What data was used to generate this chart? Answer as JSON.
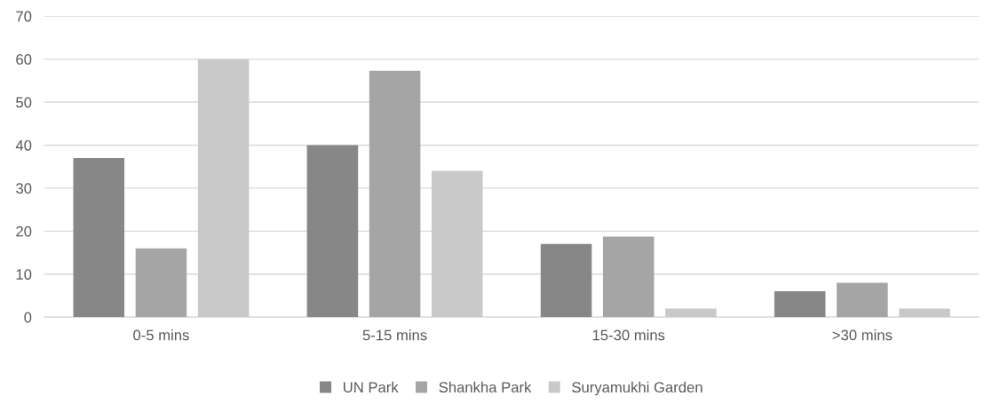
{
  "chart_data": {
    "type": "bar",
    "categories": [
      "0-5 mins",
      "5-15 mins",
      "15-30 mins",
      ">30 mins"
    ],
    "series": [
      {
        "name": "UN Park",
        "color": "#878787",
        "values": [
          37,
          40,
          17,
          6
        ]
      },
      {
        "name": "Shankha Park",
        "color": "#a5a5a5",
        "values": [
          16,
          57.3,
          18.7,
          8
        ]
      },
      {
        "name": "Suryamukhi Garden",
        "color": "#c9c9c9",
        "values": [
          60,
          34,
          2,
          2
        ]
      }
    ],
    "ylim": [
      0,
      70
    ],
    "yticks": [
      0,
      10,
      20,
      30,
      40,
      50,
      60,
      70
    ],
    "grid": "y",
    "legend": "bottom"
  }
}
